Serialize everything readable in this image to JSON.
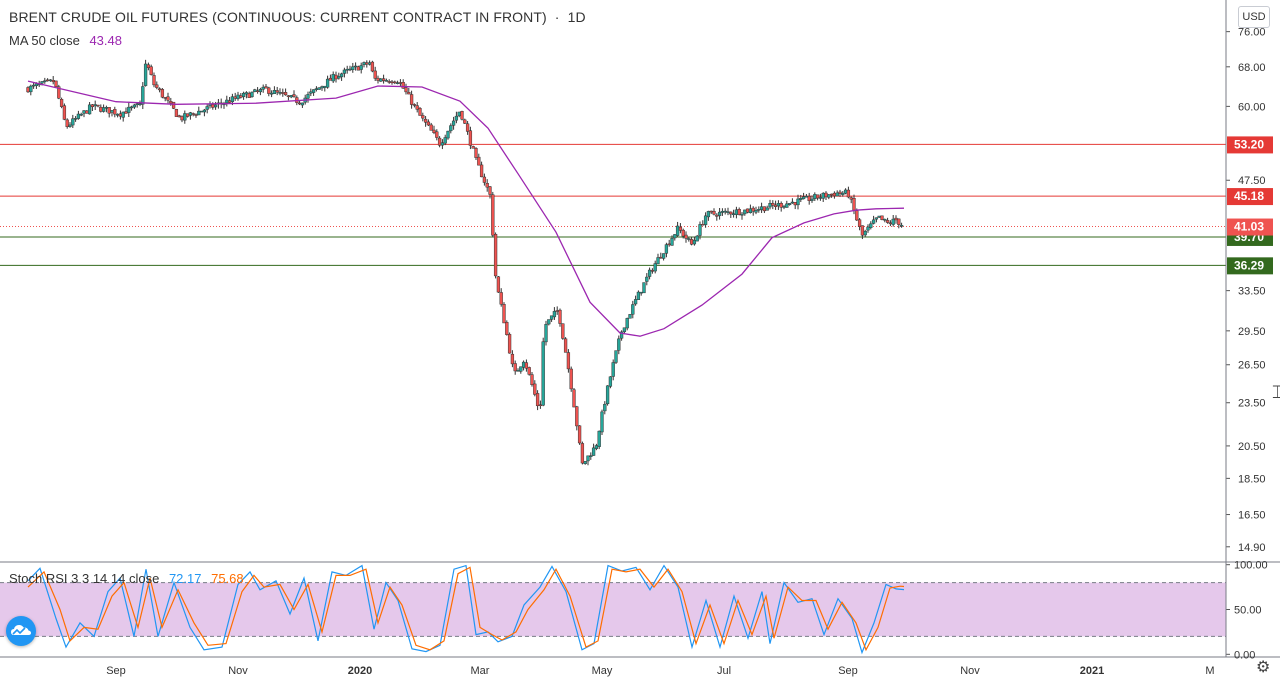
{
  "header": {
    "symbol_title": "BRENT CRUDE OIL FUTURES (CONTINUOUS: CURRENT CONTRACT IN FRONT)",
    "separator": "·",
    "interval": "1D",
    "currency_badge": "USD"
  },
  "indicators": {
    "ma": {
      "label": "MA 50 close",
      "value": "43.48",
      "color": "#9c27b0"
    },
    "stoch": {
      "label": "Stoch RSI 3 3 14 14 close",
      "k_value": "72.17",
      "d_value": "75.68",
      "k_color": "#2196f3",
      "d_color": "#ff6d00"
    }
  },
  "chart_data": [
    {
      "type": "candlestick",
      "title": "BRENT CRUDE OIL FUTURES (CONTINUOUS: CURRENT CONTRACT IN FRONT) · 1D",
      "x_tick_labels": [
        "Sep",
        "Nov",
        "2020",
        "Mar",
        "May",
        "Jul",
        "Sep",
        "Nov",
        "2021",
        "M"
      ],
      "y_tick_labels": [
        "76.00",
        "68.00",
        "60.00",
        "47.50",
        "33.50",
        "29.50",
        "26.50",
        "23.50",
        "20.50",
        "18.50",
        "16.50",
        "14.90"
      ],
      "y_axis_scale": "log",
      "ylim": [
        14.2,
        84
      ],
      "up_color": "#26a69a",
      "down_color": "#ef5350",
      "current_price": {
        "value": "41.03",
        "color": "#ef5350"
      },
      "horizontal_levels": [
        {
          "value": "53.20",
          "color": "#e53935"
        },
        {
          "value": "45.18",
          "color": "#e53935"
        },
        {
          "value": "39.70",
          "color": "#33691e"
        },
        {
          "value": "36.29",
          "color": "#33691e"
        }
      ],
      "close_path": [
        [
          "2019-07-19",
          63.5
        ],
        [
          "2019-08-01",
          65.0
        ],
        [
          "2019-08-07",
          56.2
        ],
        [
          "2019-08-20",
          60.0
        ],
        [
          "2019-09-03",
          58.7
        ],
        [
          "2019-09-13",
          60.2
        ],
        [
          "2019-09-16",
          69.0
        ],
        [
          "2019-09-20",
          64.3
        ],
        [
          "2019-10-03",
          57.7
        ],
        [
          "2019-10-15",
          59.4
        ],
        [
          "2019-11-01",
          61.7
        ],
        [
          "2019-11-15",
          63.3
        ],
        [
          "2019-12-02",
          60.9
        ],
        [
          "2019-12-20",
          66.1
        ],
        [
          "2020-01-06",
          68.9
        ],
        [
          "2020-01-08",
          65.4
        ],
        [
          "2020-01-20",
          65.2
        ],
        [
          "2020-01-31",
          58.2
        ],
        [
          "2020-02-10",
          53.3
        ],
        [
          "2020-02-20",
          59.3
        ],
        [
          "2020-02-28",
          50.5
        ],
        [
          "2020-03-06",
          45.3
        ],
        [
          "2020-03-09",
          34.4
        ],
        [
          "2020-03-18",
          25.6
        ],
        [
          "2020-03-23",
          27.0
        ],
        [
          "2020-03-31",
          22.7
        ],
        [
          "2020-04-02",
          29.9
        ],
        [
          "2020-04-09",
          31.5
        ],
        [
          "2020-04-21",
          19.3
        ],
        [
          "2020-04-28",
          20.5
        ],
        [
          "2020-05-11",
          29.6
        ],
        [
          "2020-05-25",
          35.5
        ],
        [
          "2020-06-08",
          40.8
        ],
        [
          "2020-06-15",
          38.7
        ],
        [
          "2020-06-22",
          42.6
        ],
        [
          "2020-07-13",
          43.2
        ],
        [
          "2020-08-03",
          44.2
        ],
        [
          "2020-08-26",
          45.6
        ],
        [
          "2020-09-01",
          45.6
        ],
        [
          "2020-09-08",
          39.8
        ],
        [
          "2020-09-16",
          42.2
        ],
        [
          "2020-09-21",
          41.4
        ],
        [
          "2020-09-25",
          41.9
        ],
        [
          "2020-09-29",
          41.03
        ]
      ],
      "series": [
        {
          "name": "MA 50 close",
          "points": [
            [
              "2019-07-19",
              65.0
            ],
            [
              "2019-09-01",
              60.9
            ],
            [
              "2019-10-01",
              60.4
            ],
            [
              "2019-11-10",
              60.6
            ],
            [
              "2019-12-20",
              61.6
            ],
            [
              "2020-01-10",
              64.0
            ],
            [
              "2020-02-01",
              63.8
            ],
            [
              "2020-02-20",
              61.0
            ],
            [
              "2020-03-05",
              56.0
            ],
            [
              "2020-03-20",
              48.5
            ],
            [
              "2020-04-08",
              40.3
            ],
            [
              "2020-04-25",
              32.3
            ],
            [
              "2020-05-10",
              29.3
            ],
            [
              "2020-05-20",
              29.0
            ],
            [
              "2020-06-01",
              29.7
            ],
            [
              "2020-06-20",
              32.0
            ],
            [
              "2020-07-10",
              35.3
            ],
            [
              "2020-07-25",
              39.6
            ],
            [
              "2020-08-10",
              41.5
            ],
            [
              "2020-08-25",
              42.7
            ],
            [
              "2020-09-05",
              43.2
            ],
            [
              "2020-09-15",
              43.4
            ],
            [
              "2020-09-29",
              43.48
            ]
          ]
        }
      ]
    },
    {
      "type": "line",
      "title": "Stoch RSI 3 3 14 14 close",
      "x_tick_labels": [
        "Sep",
        "Nov",
        "2020",
        "Mar",
        "May",
        "Jul",
        "Sep",
        "Nov",
        "2021",
        "M"
      ],
      "y_tick_labels": [
        "100.00",
        "50.00",
        "0.00"
      ],
      "ylim": [
        -3,
        103
      ],
      "bands": {
        "upper": 80,
        "lower": 20,
        "fill": "#e1bee7"
      },
      "series": [
        {
          "name": "K",
          "color": "#2196f3",
          "points": [
            [
              "2019-07-19",
              82
            ],
            [
              "2019-07-25",
              96
            ],
            [
              "2019-08-02",
              40
            ],
            [
              "2019-08-07",
              8
            ],
            [
              "2019-08-14",
              35
            ],
            [
              "2019-08-21",
              20
            ],
            [
              "2019-08-28",
              70
            ],
            [
              "2019-09-03",
              85
            ],
            [
              "2019-09-10",
              20
            ],
            [
              "2019-09-16",
              95
            ],
            [
              "2019-09-22",
              20
            ],
            [
              "2019-09-30",
              80
            ],
            [
              "2019-10-08",
              30
            ],
            [
              "2019-10-15",
              5
            ],
            [
              "2019-10-24",
              8
            ],
            [
              "2019-11-01",
              78
            ],
            [
              "2019-11-07",
              92
            ],
            [
              "2019-11-12",
              72
            ],
            [
              "2019-11-20",
              82
            ],
            [
              "2019-11-27",
              45
            ],
            [
              "2019-12-04",
              85
            ],
            [
              "2019-12-11",
              15
            ],
            [
              "2019-12-18",
              92
            ],
            [
              "2019-12-25",
              88
            ],
            [
              "2020-01-02",
              99
            ],
            [
              "2020-01-08",
              28
            ],
            [
              "2020-01-14",
              80
            ],
            [
              "2020-01-20",
              60
            ],
            [
              "2020-01-27",
              6
            ],
            [
              "2020-02-03",
              3
            ],
            [
              "2020-02-10",
              10
            ],
            [
              "2020-02-17",
              95
            ],
            [
              "2020-02-23",
              99
            ],
            [
              "2020-02-28",
              22
            ],
            [
              "2020-03-05",
              25
            ],
            [
              "2020-03-10",
              14
            ],
            [
              "2020-03-17",
              20
            ],
            [
              "2020-03-23",
              55
            ],
            [
              "2020-03-31",
              75
            ],
            [
              "2020-04-06",
              98
            ],
            [
              "2020-04-13",
              70
            ],
            [
              "2020-04-21",
              5
            ],
            [
              "2020-04-27",
              12
            ],
            [
              "2020-05-04",
              99
            ],
            [
              "2020-05-11",
              93
            ],
            [
              "2020-05-18",
              97
            ],
            [
              "2020-05-25",
              72
            ],
            [
              "2020-06-01",
              99
            ],
            [
              "2020-06-08",
              75
            ],
            [
              "2020-06-15",
              8
            ],
            [
              "2020-06-22",
              60
            ],
            [
              "2020-06-29",
              8
            ],
            [
              "2020-07-06",
              65
            ],
            [
              "2020-07-13",
              18
            ],
            [
              "2020-07-20",
              70
            ],
            [
              "2020-07-24",
              12
            ],
            [
              "2020-07-31",
              80
            ],
            [
              "2020-08-07",
              58
            ],
            [
              "2020-08-14",
              62
            ],
            [
              "2020-08-20",
              22
            ],
            [
              "2020-08-27",
              62
            ],
            [
              "2020-09-03",
              40
            ],
            [
              "2020-09-08",
              2
            ],
            [
              "2020-09-14",
              35
            ],
            [
              "2020-09-20",
              78
            ],
            [
              "2020-09-25",
              73
            ],
            [
              "2020-09-29",
              72.17
            ]
          ]
        },
        {
          "name": "D",
          "color": "#ff6d00",
          "points": [
            [
              "2019-07-19",
              75
            ],
            [
              "2019-07-27",
              92
            ],
            [
              "2019-08-04",
              50
            ],
            [
              "2019-08-09",
              15
            ],
            [
              "2019-08-16",
              30
            ],
            [
              "2019-08-23",
              28
            ],
            [
              "2019-08-30",
              65
            ],
            [
              "2019-09-05",
              80
            ],
            [
              "2019-09-12",
              30
            ],
            [
              "2019-09-18",
              85
            ],
            [
              "2019-09-24",
              30
            ],
            [
              "2019-10-02",
              72
            ],
            [
              "2019-10-10",
              35
            ],
            [
              "2019-10-17",
              10
            ],
            [
              "2019-10-26",
              12
            ],
            [
              "2019-11-03",
              70
            ],
            [
              "2019-11-09",
              88
            ],
            [
              "2019-11-14",
              75
            ],
            [
              "2019-11-22",
              78
            ],
            [
              "2019-11-29",
              50
            ],
            [
              "2019-12-06",
              78
            ],
            [
              "2019-12-13",
              25
            ],
            [
              "2019-12-20",
              88
            ],
            [
              "2019-12-27",
              88
            ],
            [
              "2020-01-04",
              95
            ],
            [
              "2020-01-10",
              35
            ],
            [
              "2020-01-16",
              75
            ],
            [
              "2020-01-22",
              55
            ],
            [
              "2020-01-29",
              10
            ],
            [
              "2020-02-05",
              5
            ],
            [
              "2020-02-12",
              15
            ],
            [
              "2020-02-19",
              90
            ],
            [
              "2020-02-25",
              97
            ],
            [
              "2020-03-01",
              30
            ],
            [
              "2020-03-07",
              22
            ],
            [
              "2020-03-12",
              16
            ],
            [
              "2020-03-19",
              25
            ],
            [
              "2020-03-25",
              50
            ],
            [
              "2020-04-02",
              72
            ],
            [
              "2020-04-08",
              95
            ],
            [
              "2020-04-15",
              65
            ],
            [
              "2020-04-23",
              8
            ],
            [
              "2020-04-29",
              15
            ],
            [
              "2020-05-06",
              95
            ],
            [
              "2020-05-13",
              92
            ],
            [
              "2020-05-20",
              95
            ],
            [
              "2020-05-27",
              75
            ],
            [
              "2020-06-03",
              95
            ],
            [
              "2020-06-10",
              70
            ],
            [
              "2020-06-17",
              12
            ],
            [
              "2020-06-24",
              55
            ],
            [
              "2020-07-01",
              12
            ],
            [
              "2020-07-08",
              60
            ],
            [
              "2020-07-15",
              22
            ],
            [
              "2020-07-22",
              65
            ],
            [
              "2020-07-26",
              18
            ],
            [
              "2020-08-02",
              75
            ],
            [
              "2020-08-09",
              60
            ],
            [
              "2020-08-16",
              60
            ],
            [
              "2020-08-22",
              28
            ],
            [
              "2020-08-29",
              58
            ],
            [
              "2020-09-05",
              35
            ],
            [
              "2020-09-10",
              5
            ],
            [
              "2020-09-16",
              30
            ],
            [
              "2020-09-22",
              74
            ],
            [
              "2020-09-27",
              76
            ],
            [
              "2020-09-29",
              75.68
            ]
          ]
        }
      ]
    }
  ]
}
